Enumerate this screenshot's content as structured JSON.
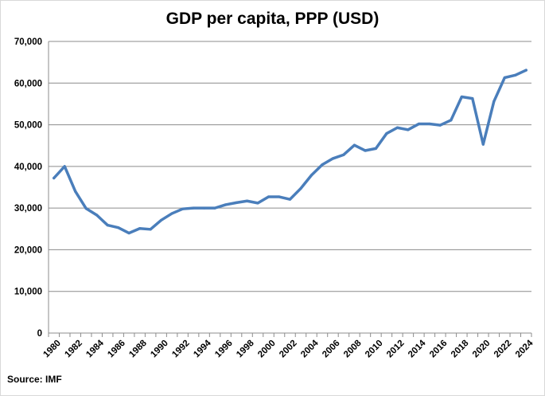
{
  "chart_data": {
    "type": "line",
    "title": "GDP per capita, PPP (USD)",
    "source": "Source: IMF",
    "xlabel": "",
    "ylabel": "",
    "ylim": [
      0,
      70000
    ],
    "yticks": [
      0,
      10000,
      20000,
      30000,
      40000,
      50000,
      60000,
      70000
    ],
    "ytick_labels": [
      "0",
      "10,000",
      "20,000",
      "30,000",
      "40,000",
      "50,000",
      "60,000",
      "70,000"
    ],
    "xtick_labels": [
      "1980",
      "1982",
      "1984",
      "1986",
      "1988",
      "1990",
      "1992",
      "1994",
      "1996",
      "1998",
      "2000",
      "2002",
      "2004",
      "2006",
      "2008",
      "2010",
      "2012",
      "2014",
      "2016",
      "2018",
      "2020",
      "2022",
      "2024"
    ],
    "grid": true,
    "line_color": "#4a7ebb",
    "series": [
      {
        "x": [
          1980,
          1981,
          1982,
          1983,
          1984,
          1985,
          1986,
          1987,
          1988,
          1989,
          1990,
          1991,
          1992,
          1993,
          1994,
          1995,
          1996,
          1997,
          1998,
          1999,
          2000,
          2001,
          2002,
          2003,
          2004,
          2005,
          2006,
          2007,
          2008,
          2009,
          2010,
          2011,
          2012,
          2013,
          2014,
          2015,
          2016,
          2017,
          2018,
          2019,
          2020,
          2021,
          2022,
          2023,
          2024
        ],
        "values": [
          37200,
          40000,
          34000,
          29900,
          28300,
          25900,
          25300,
          24000,
          25100,
          24900,
          27100,
          28700,
          29800,
          30000,
          30000,
          30000,
          30800,
          31300,
          31700,
          31200,
          32700,
          32700,
          32100,
          34700,
          37900,
          40400,
          41900,
          42800,
          45100,
          43800,
          44300,
          47900,
          49300,
          48800,
          50200,
          50200,
          49900,
          51100,
          56700,
          56300,
          45300,
          55600,
          61300,
          61900,
          63100
        ]
      }
    ]
  }
}
